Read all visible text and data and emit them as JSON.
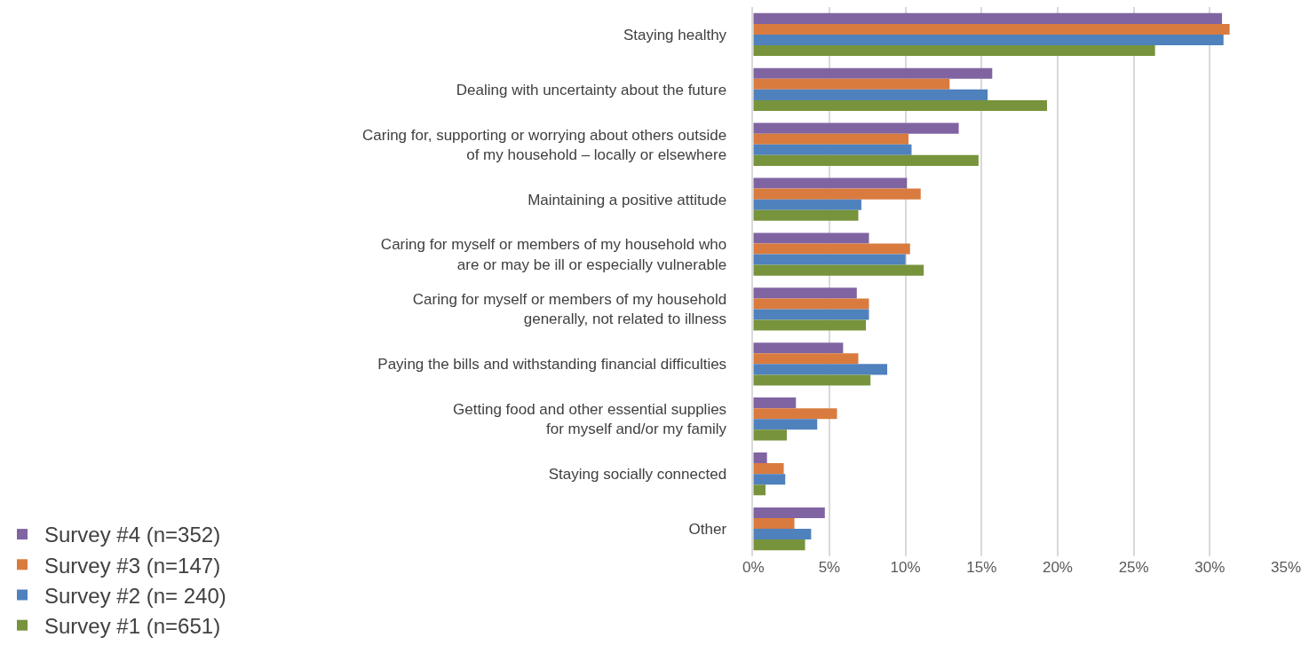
{
  "chart_data": {
    "type": "bar",
    "orientation": "horizontal",
    "categories": [
      "Staying healthy",
      "Dealing with uncertainty about the future",
      "Caring for, supporting or worrying about others outside\nof my household – locally or elsewhere",
      "Maintaining a positive attitude",
      "Caring for myself or members of my household who\nare or may be ill or especially vulnerable",
      "Caring for myself or members of my household\ngenerally, not related to illness",
      "Paying the bills and withstanding financial difficulties",
      "Getting food and other essential supplies\nfor myself and/or my family",
      "Staying socially connected",
      "Other"
    ],
    "series": [
      {
        "name": "Survey #4 (n=352)",
        "color": "#8064a2",
        "values": [
          30.8,
          15.7,
          13.5,
          10.1,
          7.6,
          6.8,
          5.9,
          2.8,
          0.9,
          4.7
        ]
      },
      {
        "name": "Survey #3 (n=147)",
        "color": "#d97b3e",
        "values": [
          31.3,
          12.9,
          10.2,
          11.0,
          10.3,
          7.6,
          6.9,
          5.5,
          2.0,
          2.7
        ]
      },
      {
        "name": "Survey #2 (n= 240)",
        "color": "#4f81bd",
        "values": [
          30.9,
          15.4,
          10.4,
          7.1,
          10.0,
          7.6,
          8.8,
          4.2,
          2.1,
          3.8
        ]
      },
      {
        "name": "Survey #1 (n=651)",
        "color": "#77933c",
        "values": [
          26.4,
          19.3,
          14.8,
          6.9,
          11.2,
          7.4,
          7.7,
          2.2,
          0.8,
          3.4
        ]
      }
    ],
    "xlim": [
      0,
      35
    ],
    "xticks": [
      {
        "value": 0,
        "label": "0%"
      },
      {
        "value": 5,
        "label": "5%"
      },
      {
        "value": 10,
        "label": "10%"
      },
      {
        "value": 15,
        "label": "15%"
      },
      {
        "value": 20,
        "label": "20%"
      },
      {
        "value": 25,
        "label": "25%"
      },
      {
        "value": 30,
        "label": "30%"
      },
      {
        "value": 35,
        "label": "35%"
      }
    ],
    "grid": "x",
    "legend": "bottom"
  }
}
